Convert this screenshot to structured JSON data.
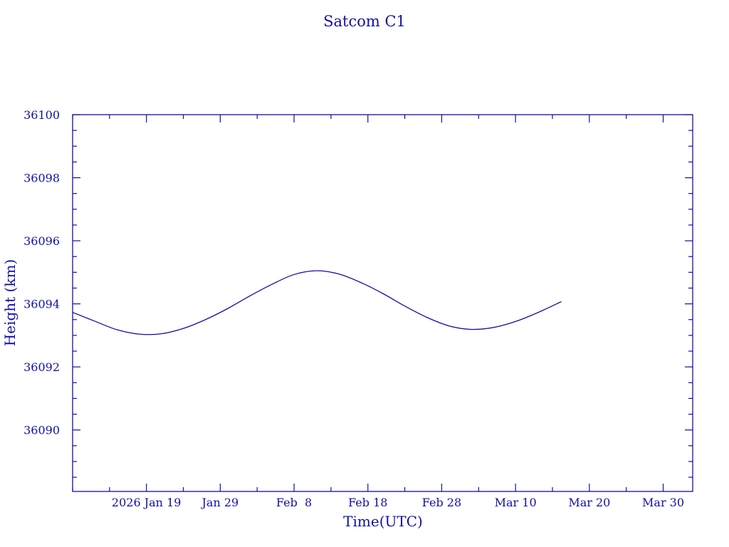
{
  "chart_data": {
    "type": "line",
    "title": "Satcom C1",
    "xlabel": "Time(UTC)",
    "ylabel": "Height (km)",
    "x_unit": "days since 2026 Jan 9",
    "xlim": [
      0,
      84
    ],
    "ylim": [
      36088.05,
      36100
    ],
    "x_ticks": [
      {
        "value": 10,
        "label": "2026 Jan 19"
      },
      {
        "value": 20,
        "label": "Jan 29"
      },
      {
        "value": 30,
        "label": "Feb  8"
      },
      {
        "value": 40,
        "label": "Feb 18"
      },
      {
        "value": 50,
        "label": "Feb 28"
      },
      {
        "value": 60,
        "label": "Mar 10"
      },
      {
        "value": 70,
        "label": "Mar 20"
      },
      {
        "value": 80,
        "label": "Mar 30"
      }
    ],
    "x_minor_step": 5,
    "y_ticks": [
      {
        "value": 36090,
        "label": "36090"
      },
      {
        "value": 36092,
        "label": "36092"
      },
      {
        "value": 36094,
        "label": "36094"
      },
      {
        "value": 36096,
        "label": "36096"
      },
      {
        "value": 36098,
        "label": "36098"
      },
      {
        "value": 36100,
        "label": "36100"
      }
    ],
    "y_minor_step": 0.5,
    "grid": false,
    "color": "#1010a8",
    "series": [
      {
        "name": "Height",
        "x": [
          0,
          3,
          6,
          9,
          12,
          15,
          18,
          21,
          24,
          27,
          30,
          33,
          36,
          39,
          42,
          45,
          48,
          51,
          54,
          57,
          60,
          63,
          66.2
        ],
        "y": [
          36093.73,
          36093.45,
          36093.18,
          36093.04,
          36093.05,
          36093.22,
          36093.5,
          36093.85,
          36094.25,
          36094.62,
          36094.93,
          36095.05,
          36094.95,
          36094.68,
          36094.33,
          36093.93,
          36093.57,
          36093.3,
          36093.19,
          36093.25,
          36093.44,
          36093.72,
          36094.07
        ]
      }
    ]
  }
}
